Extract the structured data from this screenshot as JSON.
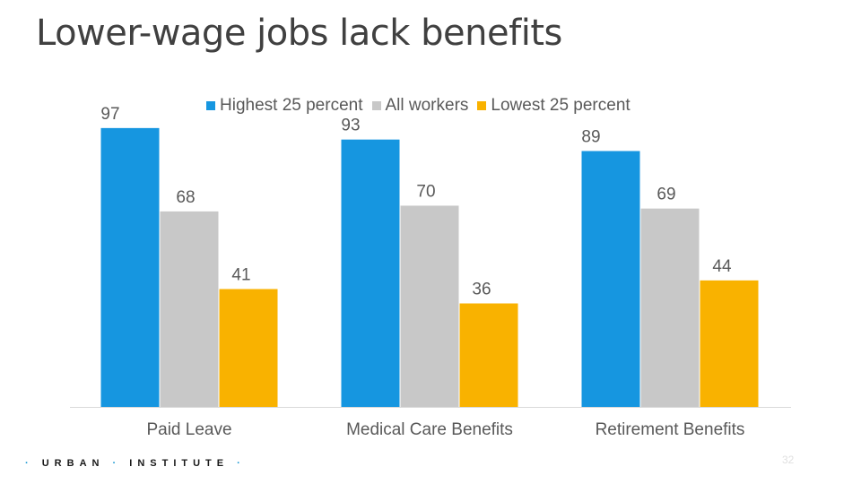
{
  "slide": {
    "title": "Lower-wage jobs lack benefits",
    "footer_brand_left": "·",
    "footer_brand_1": "URBAN",
    "footer_brand_2": "INSTITUTE",
    "footer_brand_right": "·",
    "page_number": "32"
  },
  "colors": {
    "highest": "#1696e0",
    "all": "#c8c8c8",
    "lowest": "#f9b200",
    "axis": "#d9d9d9",
    "label_text": "#595959"
  },
  "legend": [
    {
      "label": "Highest 25 percent",
      "color": "#1696e0"
    },
    {
      "label": "All workers",
      "color": "#c8c8c8"
    },
    {
      "label": "Lowest 25 percent",
      "color": "#f9b200"
    }
  ],
  "chart_data": {
    "type": "bar",
    "categories": [
      "Paid Leave",
      "Medical Care Benefits",
      "Retirement Benefits"
    ],
    "series": [
      {
        "name": "Highest 25 percent",
        "values": [
          97,
          93,
          89
        ]
      },
      {
        "name": "All workers",
        "values": [
          68,
          70,
          69
        ]
      },
      {
        "name": "Lowest 25 percent",
        "values": [
          41,
          36,
          44
        ]
      }
    ],
    "ylim": [
      0,
      100
    ],
    "grid": false,
    "legend_position": "top"
  }
}
